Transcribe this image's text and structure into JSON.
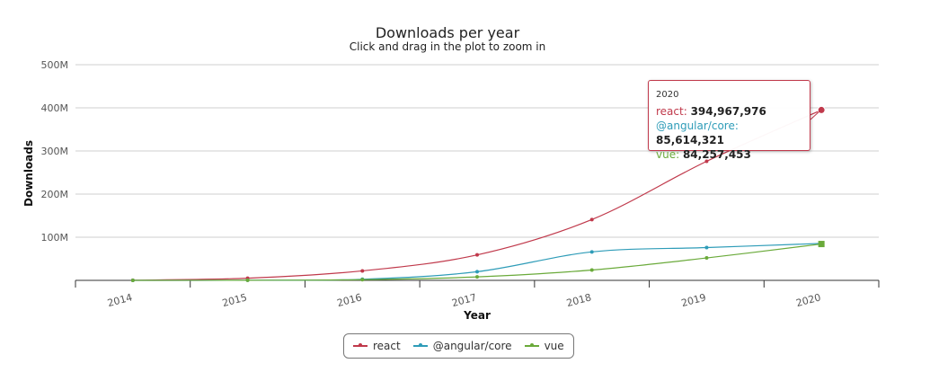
{
  "chart_data": {
    "type": "line",
    "title": "Downloads per year",
    "subtitle": "Click and drag in the plot to zoom in",
    "xlabel": "Year",
    "ylabel": "Downloads",
    "categories": [
      "2014",
      "2015",
      "2016",
      "2017",
      "2018",
      "2019",
      "2020"
    ],
    "ylim": [
      0,
      500000000
    ],
    "yticks": [
      {
        "value": 100000000,
        "label": "100M"
      },
      {
        "value": 200000000,
        "label": "200M"
      },
      {
        "value": 300000000,
        "label": "300M"
      },
      {
        "value": 400000000,
        "label": "400M"
      },
      {
        "value": 500000000,
        "label": "500M"
      }
    ],
    "grid": true,
    "legend_position": "bottom-center",
    "series": [
      {
        "name": "react",
        "color": "#c0394b",
        "values": [
          300000,
          5000000,
          22000000,
          59000000,
          141000000,
          276000000,
          394967976
        ]
      },
      {
        "name": "@angular/core",
        "color": "#2e9cb8",
        "values": [
          0,
          200000,
          2500000,
          20000000,
          66000000,
          76000000,
          85614321
        ]
      },
      {
        "name": "vue",
        "color": "#6aaa3a",
        "values": [
          0,
          300000,
          1500000,
          8000000,
          24000000,
          52000000,
          84257453
        ]
      }
    ],
    "tooltip": {
      "header": "2020",
      "rows": [
        {
          "name": "react",
          "value": "394,967,976"
        },
        {
          "name": "@angular/core",
          "value": "85,614,321"
        },
        {
          "name": "vue",
          "value": "84,257,453"
        }
      ]
    }
  }
}
